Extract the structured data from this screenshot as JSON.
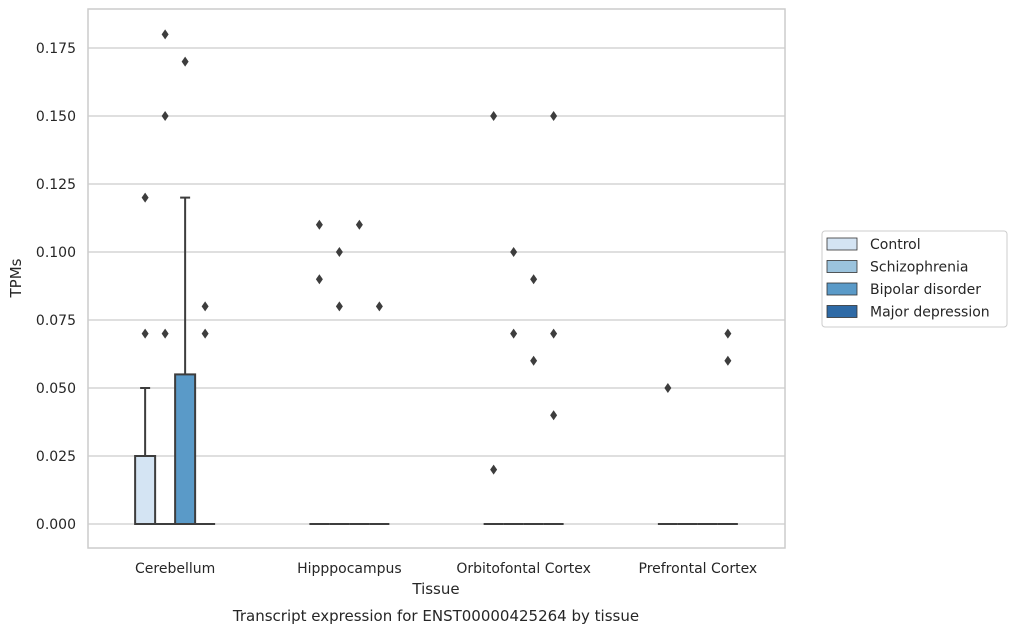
{
  "chart_data": {
    "type": "box",
    "caption": "Transcript expression for ENST00000425264 by tissue",
    "xlabel": "Tissue",
    "ylabel": "TPMs",
    "ylim": [
      -0.018,
      0.182
    ],
    "yticks": [
      0.0,
      0.025,
      0.05,
      0.075,
      0.1,
      0.125,
      0.15,
      0.175
    ],
    "ytick_labels": [
      "0.000",
      "0.025",
      "0.050",
      "0.075",
      "0.100",
      "0.125",
      "0.150",
      "0.175"
    ],
    "categories": [
      "Cerebellum",
      "Hipppocampus",
      "Orbitofontal Cortex",
      "Prefrontal Cortex"
    ],
    "grid": true,
    "legend_position": "right",
    "series": [
      {
        "name": "Control",
        "color": "#d4e4f3",
        "boxes": [
          {
            "q1": 0,
            "median": 0,
            "q3": 0.025,
            "whisker_low": 0,
            "whisker_high": 0.05,
            "fliers": [
              0.07,
              0.12
            ]
          },
          {
            "q1": 0,
            "median": 0,
            "q3": 0,
            "whisker_low": 0,
            "whisker_high": 0,
            "fliers": [
              0.09,
              0.11
            ]
          },
          {
            "q1": 0,
            "median": 0,
            "q3": 0,
            "whisker_low": 0,
            "whisker_high": 0,
            "fliers": [
              0.02,
              0.15
            ]
          },
          {
            "q1": 0,
            "median": 0,
            "q3": 0,
            "whisker_low": 0,
            "whisker_high": 0,
            "fliers": [
              0.05
            ]
          }
        ]
      },
      {
        "name": "Schizophrenia",
        "color": "#9bc3dd",
        "boxes": [
          {
            "q1": 0,
            "median": 0,
            "q3": 0,
            "whisker_low": 0,
            "whisker_high": 0,
            "fliers": [
              0.07,
              0.15,
              0.18
            ]
          },
          {
            "q1": 0,
            "median": 0,
            "q3": 0,
            "whisker_low": 0,
            "whisker_high": 0,
            "fliers": [
              0.08,
              0.1
            ]
          },
          {
            "q1": 0,
            "median": 0,
            "q3": 0,
            "whisker_low": 0,
            "whisker_high": 0,
            "fliers": [
              0.07,
              0.1
            ]
          },
          {
            "q1": 0,
            "median": 0,
            "q3": 0,
            "whisker_low": 0,
            "whisker_high": 0,
            "fliers": []
          }
        ]
      },
      {
        "name": "Bipolar disorder",
        "color": "#5a9ac8",
        "boxes": [
          {
            "q1": 0,
            "median": 0,
            "q3": 0.055,
            "whisker_low": 0,
            "whisker_high": 0.12,
            "fliers": [
              0.17
            ]
          },
          {
            "q1": 0,
            "median": 0,
            "q3": 0,
            "whisker_low": 0,
            "whisker_high": 0,
            "fliers": [
              0.11
            ]
          },
          {
            "q1": 0,
            "median": 0,
            "q3": 0,
            "whisker_low": 0,
            "whisker_high": 0,
            "fliers": [
              0.06,
              0.09
            ]
          },
          {
            "q1": 0,
            "median": 0,
            "q3": 0,
            "whisker_low": 0,
            "whisker_high": 0,
            "fliers": []
          }
        ]
      },
      {
        "name": "Major depression",
        "color": "#2e6aa6",
        "boxes": [
          {
            "q1": 0,
            "median": 0,
            "q3": 0,
            "whisker_low": 0,
            "whisker_high": 0,
            "fliers": [
              0.07,
              0.08
            ]
          },
          {
            "q1": 0,
            "median": 0,
            "q3": 0,
            "whisker_low": 0,
            "whisker_high": 0,
            "fliers": [
              0.08
            ]
          },
          {
            "q1": 0,
            "median": 0,
            "q3": 0,
            "whisker_low": 0,
            "whisker_high": 0,
            "fliers": [
              0.04,
              0.07,
              0.15
            ]
          },
          {
            "q1": 0,
            "median": 0,
            "q3": 0,
            "whisker_low": 0,
            "whisker_high": 0,
            "fliers": [
              0.06,
              0.07
            ]
          }
        ]
      }
    ]
  }
}
